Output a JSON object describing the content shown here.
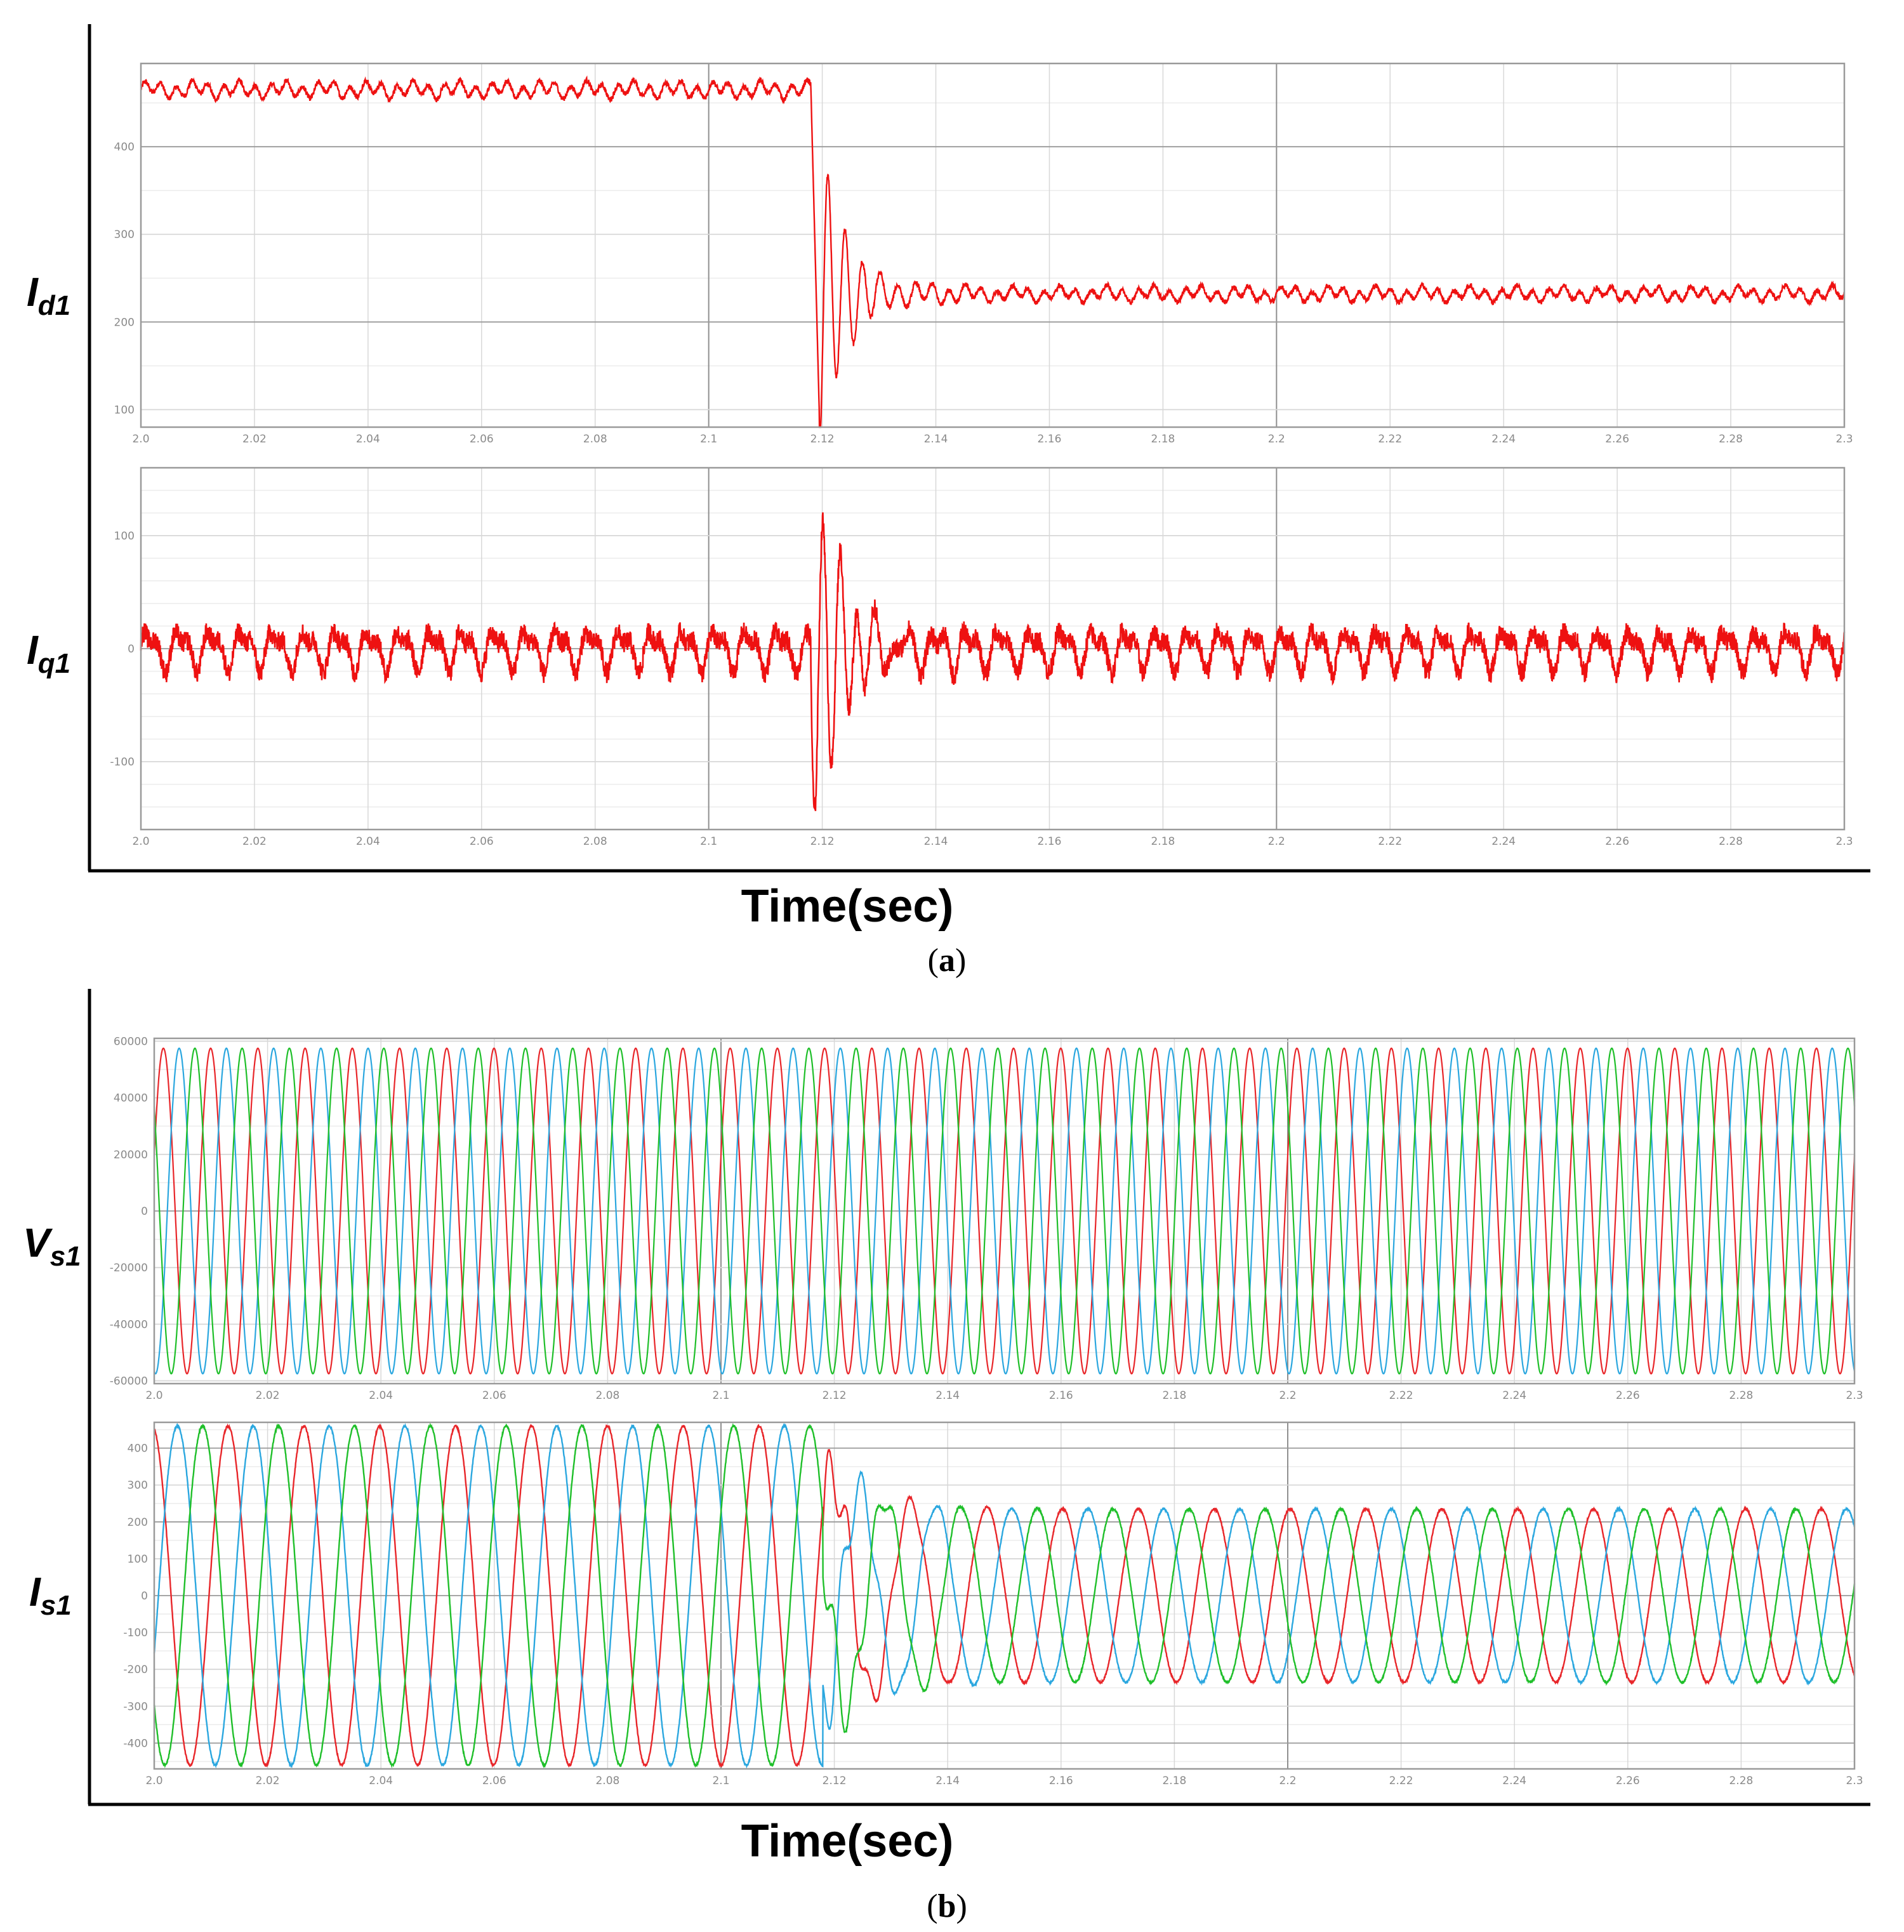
{
  "panels": [
    {
      "caption_letter": "a",
      "xlabel": "Time(sec)"
    },
    {
      "caption_letter": "b",
      "xlabel": "Time(sec)"
    }
  ],
  "colors": {
    "phase_a": "#e8262a",
    "phase_b": "#2ba7df",
    "phase_c": "#1fbf2a",
    "dq": "#ee1111",
    "grid": "#d8d8d8",
    "frame": "#9a9a9a"
  },
  "chart_data": [
    {
      "type": "line",
      "ylabel_main": "I",
      "ylabel_sub": "d1",
      "xlim": [
        2.0,
        2.3
      ],
      "ylim": [
        80,
        495
      ],
      "x_ticks": [
        "2.0",
        "2.02",
        "2.04",
        "2.06",
        "2.08",
        "2.1",
        "2.12",
        "2.14",
        "2.16",
        "2.18",
        "2.2",
        "2.22",
        "2.24",
        "2.26",
        "2.28",
        "2.3"
      ],
      "y_ticks": [
        100,
        200,
        300,
        400
      ],
      "series": [
        {
          "color": "#ee1111",
          "description_values": {
            "pre_fault_level": 465,
            "fault_time": 2.118,
            "post_fault_level": 232,
            "min_transient": 90
          }
        }
      ]
    },
    {
      "type": "line",
      "ylabel_main": "I",
      "ylabel_sub": "q1",
      "xlim": [
        2.0,
        2.3
      ],
      "ylim": [
        -160,
        160
      ],
      "x_ticks": [
        "2.0",
        "2.02",
        "2.04",
        "2.06",
        "2.08",
        "2.1",
        "2.12",
        "2.14",
        "2.16",
        "2.18",
        "2.2",
        "2.22",
        "2.24",
        "2.26",
        "2.28",
        "2.3"
      ],
      "y_ticks": [
        -100,
        0,
        100
      ],
      "series": [
        {
          "color": "#ee1111",
          "description_values": {
            "steady_level": 0,
            "ripple_amplitude": 25,
            "fault_time": 2.118,
            "max_transient": 160,
            "min_transient": -160
          }
        }
      ]
    },
    {
      "type": "line",
      "ylabel_main": "V",
      "ylabel_sub": "s1",
      "xlim": [
        2.0,
        2.3
      ],
      "ylim": [
        -61000,
        61000
      ],
      "x_ticks": [
        "2.0",
        "2.02",
        "2.04",
        "2.06",
        "2.08",
        "2.1",
        "2.12",
        "2.14",
        "2.16",
        "2.18",
        "2.2",
        "2.22",
        "2.24",
        "2.26",
        "2.28",
        "2.3"
      ],
      "y_ticks": [
        -60000,
        -40000,
        -20000,
        0,
        20000,
        40000,
        60000
      ],
      "series": [
        {
          "color": "#e8262a",
          "amplitude": 57500,
          "frequency_hz": 120,
          "phase_deg": 0
        },
        {
          "color": "#2ba7df",
          "amplitude": 57500,
          "frequency_hz": 120,
          "phase_deg": -120
        },
        {
          "color": "#1fbf2a",
          "amplitude": 57500,
          "frequency_hz": 120,
          "phase_deg": 120
        }
      ]
    },
    {
      "type": "line",
      "ylabel_main": "I",
      "ylabel_sub": "s1",
      "xlim": [
        2.0,
        2.3
      ],
      "ylim": [
        -470,
        470
      ],
      "x_ticks": [
        "2.0",
        "2.02",
        "2.04",
        "2.06",
        "2.08",
        "2.1",
        "2.12",
        "2.14",
        "2.16",
        "2.18",
        "2.2",
        "2.22",
        "2.24",
        "2.26",
        "2.28",
        "2.3"
      ],
      "y_ticks": [
        -400,
        -300,
        -200,
        -100,
        0,
        100,
        200,
        300,
        400
      ],
      "series": [
        {
          "color": "#e8262a",
          "amplitude_pre": 460,
          "amplitude_post": 235,
          "frequency_hz": 60,
          "fault_time": 2.118
        },
        {
          "color": "#2ba7df",
          "amplitude_pre": 460,
          "amplitude_post": 235,
          "frequency_hz": 60,
          "fault_time": 2.118
        },
        {
          "color": "#1fbf2a",
          "amplitude_pre": 460,
          "amplitude_post": 235,
          "frequency_hz": 60,
          "fault_time": 2.118
        }
      ]
    }
  ]
}
